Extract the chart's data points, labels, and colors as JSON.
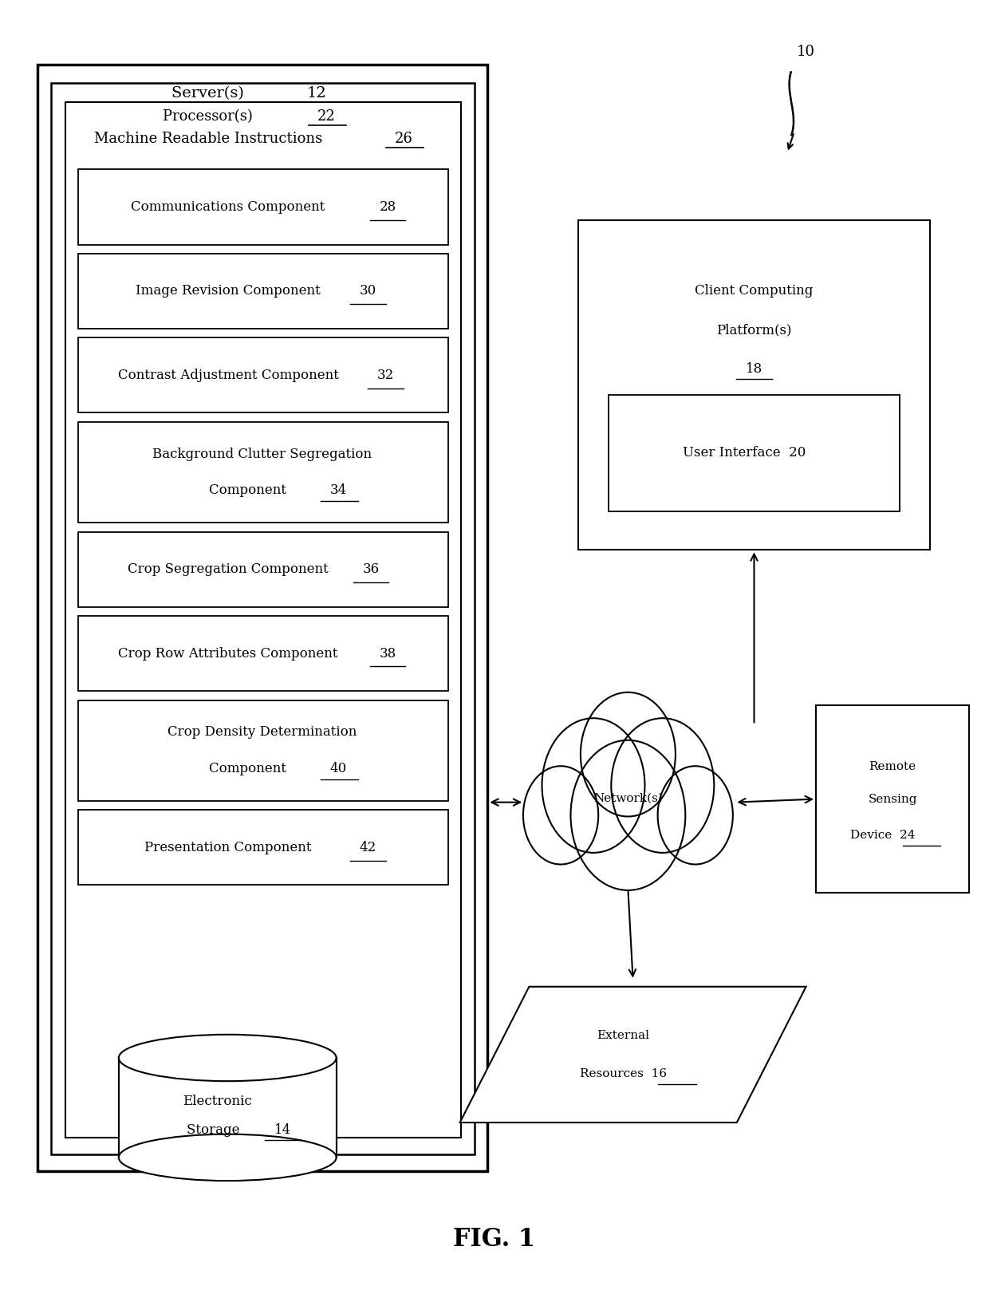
{
  "bg_color": "#ffffff",
  "fig_label": "FIG. 1",
  "system_label": "10",
  "components": [
    {
      "label": "Communications Component",
      "num": "28",
      "two_line": false
    },
    {
      "label": "Image Revision Component",
      "num": "30",
      "two_line": false
    },
    {
      "label": "Contrast Adjustment Component",
      "num": "32",
      "two_line": false
    },
    {
      "label": "Background Clutter Segregation\nComponent",
      "num": "34",
      "two_line": true
    },
    {
      "label": "Crop Segregation Component",
      "num": "36",
      "two_line": false
    },
    {
      "label": "Crop Row Attributes Component",
      "num": "38",
      "two_line": false
    },
    {
      "label": "Crop Density Determination\nComponent",
      "num": "40",
      "two_line": true
    },
    {
      "label": "Presentation Component",
      "num": "42",
      "two_line": false
    }
  ]
}
